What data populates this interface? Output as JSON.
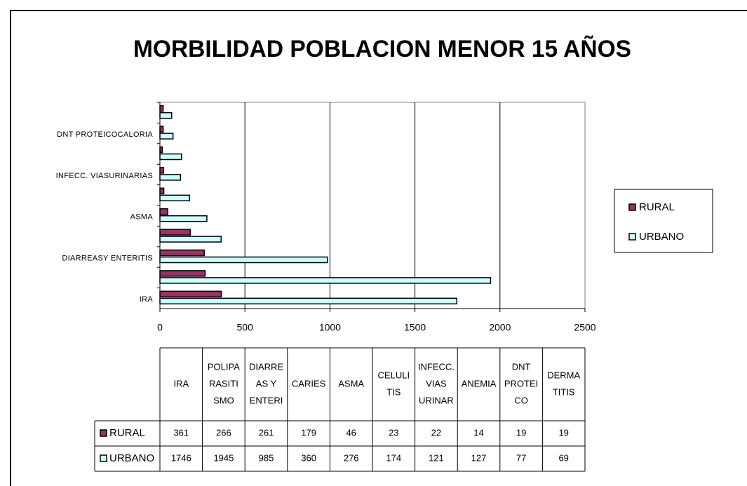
{
  "chart_data": {
    "type": "hbar",
    "title": "MORBILIDAD POBLACION MENOR 15 AÑOS",
    "categories": [
      "IRA",
      null,
      "DIARREASY ENTERITIS",
      null,
      "ASMA",
      null,
      "INFECC. VIASURINARIAS",
      null,
      "DNT PROTEICOCALORIA",
      null
    ],
    "series": [
      {
        "name": "RURAL",
        "color": "#993366",
        "values": [
          361,
          266,
          261,
          179,
          46,
          23,
          22,
          14,
          19,
          19
        ]
      },
      {
        "name": "URBANO",
        "color": "#ccffff",
        "values": [
          1746,
          1945,
          985,
          360,
          276,
          174,
          121,
          127,
          77,
          69
        ]
      }
    ],
    "table_headers": [
      [
        "IRA"
      ],
      [
        "POLIPA",
        "RASITI",
        "SMO"
      ],
      [
        "DIARRE",
        "AS Y",
        "ENTERI"
      ],
      [
        "CARIES"
      ],
      [
        "ASMA"
      ],
      [
        "CELULI",
        "TIS"
      ],
      [
        "INFECC.",
        "VIAS",
        "URINAR"
      ],
      [
        "ANEMIA"
      ],
      [
        "DNT",
        "PROTEI",
        "CO"
      ],
      [
        "DERMA",
        "TITIS"
      ]
    ],
    "xlim": [
      0,
      2500
    ],
    "xticks": [
      0,
      500,
      1000,
      1500,
      2000,
      2500
    ],
    "grid": true,
    "legend": "right"
  }
}
